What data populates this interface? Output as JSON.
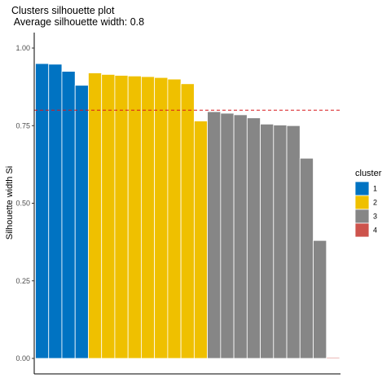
{
  "chart_data": {
    "type": "bar",
    "title": "Clusters silhouette plot",
    "subtitle": " Average silhouette width: 0.8",
    "xlabel": "",
    "ylabel": "Silhouette width Si",
    "ylim": [
      0,
      1
    ],
    "yticks": [
      "0.00",
      "0.25",
      "0.50",
      "0.75",
      "1.00"
    ],
    "reference_line": {
      "value": 0.8,
      "style": "dashed",
      "color": "#d7191c"
    },
    "grid": false,
    "legend": {
      "title": "cluster",
      "placement": "right",
      "entries": [
        {
          "label": "1",
          "color": "#0073c2"
        },
        {
          "label": "2",
          "color": "#efc000"
        },
        {
          "label": "3",
          "color": "#868686"
        },
        {
          "label": "4",
          "color": "#cd534c"
        }
      ]
    },
    "bars": [
      {
        "cluster": "1",
        "value": 0.95
      },
      {
        "cluster": "1",
        "value": 0.948
      },
      {
        "cluster": "1",
        "value": 0.925
      },
      {
        "cluster": "1",
        "value": 0.88
      },
      {
        "cluster": "2",
        "value": 0.92
      },
      {
        "cluster": "2",
        "value": 0.915
      },
      {
        "cluster": "2",
        "value": 0.912
      },
      {
        "cluster": "2",
        "value": 0.91
      },
      {
        "cluster": "2",
        "value": 0.908
      },
      {
        "cluster": "2",
        "value": 0.905
      },
      {
        "cluster": "2",
        "value": 0.9
      },
      {
        "cluster": "2",
        "value": 0.885
      },
      {
        "cluster": "2",
        "value": 0.765
      },
      {
        "cluster": "3",
        "value": 0.795
      },
      {
        "cluster": "3",
        "value": 0.79
      },
      {
        "cluster": "3",
        "value": 0.785
      },
      {
        "cluster": "3",
        "value": 0.775
      },
      {
        "cluster": "3",
        "value": 0.755
      },
      {
        "cluster": "3",
        "value": 0.752
      },
      {
        "cluster": "3",
        "value": 0.75
      },
      {
        "cluster": "3",
        "value": 0.645
      },
      {
        "cluster": "3",
        "value": 0.38
      },
      {
        "cluster": "4",
        "value": 0.003
      }
    ]
  }
}
